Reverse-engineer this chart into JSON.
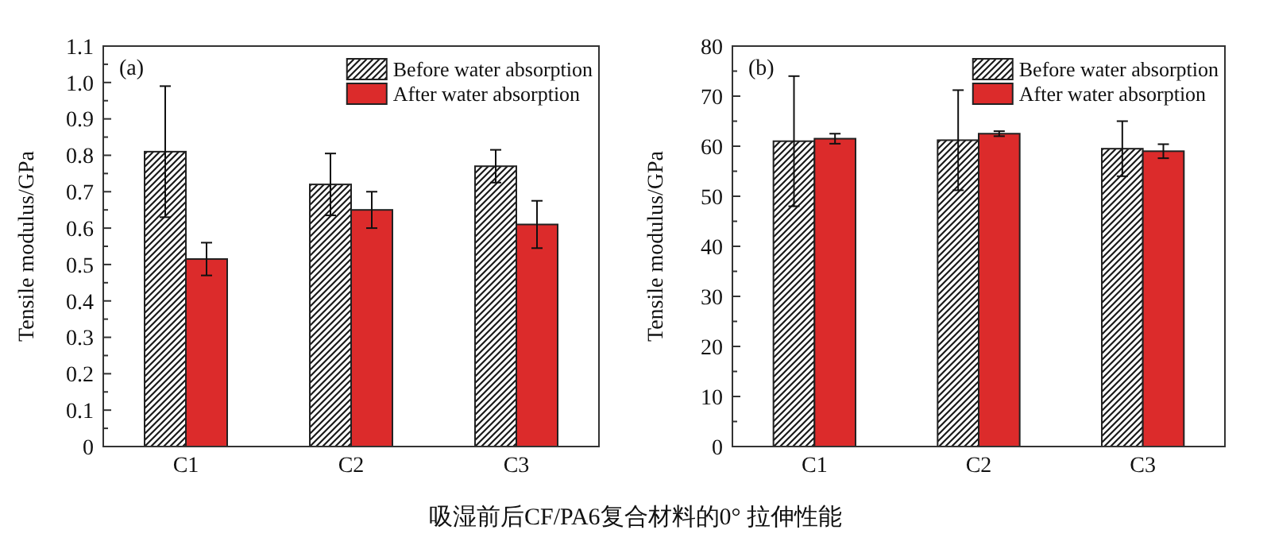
{
  "chart_data": [
    {
      "type": "bar",
      "categories": [
        "C1",
        "C2",
        "C3"
      ],
      "ylabel": "Tensile modulus/GPa",
      "annotations": [
        "(a)",
        "吸湿前后CF/PA6复合材料的0° 拉伸性能"
      ],
      "series": [
        {
          "name": "Before water absorption",
          "color": "#1a1a1a",
          "values": [
            0.81,
            0.72,
            0.77
          ],
          "errors": [
            0.18,
            0.085,
            0.045
          ]
        },
        {
          "name": "After water absorption",
          "color": "#dc2b2b",
          "values": [
            0.515,
            0.65,
            0.61
          ],
          "errors": [
            0.045,
            0.05,
            0.065
          ]
        }
      ],
      "ylim": [
        0,
        1.1
      ],
      "yticks": [
        0,
        {
          "value": 0.05,
          "label": null
        },
        0.1,
        {
          "value": 0.15,
          "label": null
        },
        0.2,
        {
          "value": 0.25,
          "label": null
        },
        0.3,
        {
          "value": 0.35,
          "label": null
        },
        0.4,
        {
          "value": 0.45,
          "label": null
        },
        0.5,
        {
          "value": 0.55,
          "label": null
        },
        0.6,
        {
          "value": 0.65,
          "label": null
        },
        0.7,
        {
          "value": 0.75,
          "label": null
        },
        0.8,
        {
          "value": 0.85,
          "label": null
        },
        0.9,
        {
          "value": 0.95,
          "label": null
        },
        {
          "value": 1,
          "label": "1.0"
        },
        {
          "value": 1.05,
          "label": null
        },
        1.1
      ],
      "legend": "top right"
    },
    {
      "type": "bar",
      "categories": [
        "C1",
        "C2",
        "C3"
      ],
      "ylabel": "Tensile modulus/GPa",
      "annotations": [
        "(b)"
      ],
      "series": [
        {
          "name": "Before water absorption",
          "color": "#1a1a1a",
          "values": [
            61,
            61.2,
            59.5
          ],
          "errors": [
            13,
            10,
            5.5
          ]
        },
        {
          "name": "After water absorption",
          "color": "#dc2b2b",
          "values": [
            61.5,
            62.5,
            59
          ],
          "errors": [
            1,
            0.5,
            1.4
          ]
        }
      ],
      "ylim": [
        0,
        80
      ],
      "yticks": [
        0,
        {
          "value": 5,
          "label": null
        },
        10,
        {
          "value": 15,
          "label": null
        },
        20,
        {
          "value": 25,
          "label": null
        },
        30,
        {
          "value": 35,
          "label": null
        },
        40,
        {
          "value": 45,
          "label": null
        },
        50,
        {
          "value": 55,
          "label": null
        },
        60,
        {
          "value": 65,
          "label": null
        },
        70,
        {
          "value": 75,
          "label": null
        },
        80
      ],
      "legend": "top right"
    }
  ]
}
